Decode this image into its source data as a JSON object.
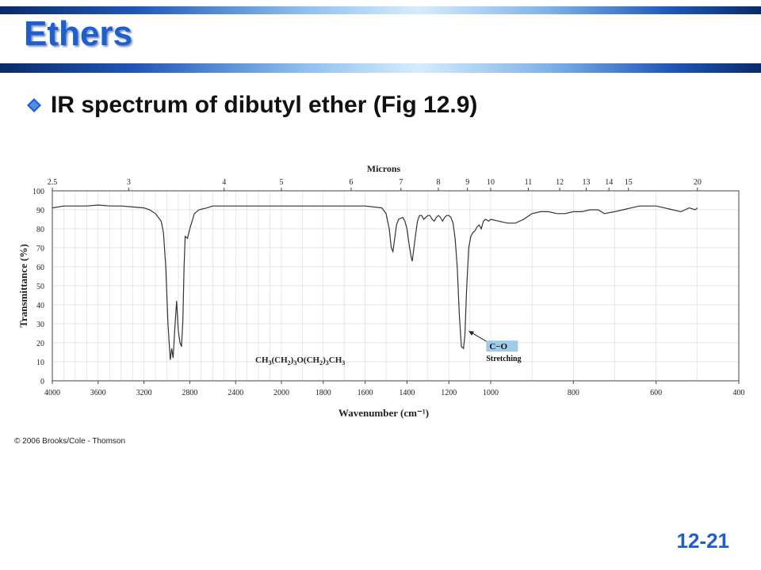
{
  "slide": {
    "title": "Ethers",
    "bullet": "IR spectrum of dibutyl ether (Fig 12.9)",
    "copyright": "© 2006 Brooks/Cole - Thomson",
    "slide_number": "12-21",
    "accent_color": "#1f5fcc",
    "bullet_icon": "diamond-bullet-icon"
  },
  "chart_data": {
    "type": "line",
    "title": "",
    "top_axis_label": "Microns",
    "xlabel": "Wavenumber (cm⁻¹)",
    "ylabel": "Transmittance (%)",
    "ylim": [
      0,
      100
    ],
    "grid": true,
    "y_ticks": [
      0,
      10,
      20,
      30,
      40,
      50,
      60,
      70,
      80,
      90,
      100
    ],
    "x_ticks": [
      4000,
      3600,
      3200,
      2800,
      2400,
      2000,
      1800,
      1600,
      1400,
      1200,
      1000,
      800,
      600,
      400
    ],
    "x_scale_breaks": [
      2000,
      1000
    ],
    "micron_ticks": [
      {
        "label": "2.5",
        "wn": 4000
      },
      {
        "label": "3",
        "wn": 3333
      },
      {
        "label": "4",
        "wn": 2500
      },
      {
        "label": "5",
        "wn": 2000
      },
      {
        "label": "6",
        "wn": 1667
      },
      {
        "label": "7",
        "wn": 1429
      },
      {
        "label": "8",
        "wn": 1250
      },
      {
        "label": "9",
        "wn": 1111
      },
      {
        "label": "10",
        "wn": 1000
      },
      {
        "label": "11",
        "wn": 909
      },
      {
        "label": "12",
        "wn": 833
      },
      {
        "label": "13",
        "wn": 769
      },
      {
        "label": "14",
        "wn": 714
      },
      {
        "label": "15",
        "wn": 667
      },
      {
        "label": "20",
        "wn": 500
      }
    ],
    "molecule_formula": "CH3(CH2)3O(CH2)3CH3",
    "annotation": {
      "label": "C−O",
      "sublabel": "Stretching",
      "wn": 1120,
      "t": 27
    },
    "series": [
      {
        "color": "#333333",
        "points": [
          [
            4000,
            91
          ],
          [
            3900,
            92
          ],
          [
            3800,
            92
          ],
          [
            3700,
            92
          ],
          [
            3600,
            92.5
          ],
          [
            3500,
            92
          ],
          [
            3400,
            92
          ],
          [
            3300,
            91.5
          ],
          [
            3200,
            91
          ],
          [
            3150,
            90
          ],
          [
            3100,
            88
          ],
          [
            3050,
            84
          ],
          [
            3030,
            78
          ],
          [
            3010,
            60
          ],
          [
            2990,
            30
          ],
          [
            2970,
            11
          ],
          [
            2958,
            17
          ],
          [
            2945,
            12
          ],
          [
            2930,
            28
          ],
          [
            2915,
            42
          ],
          [
            2900,
            26
          ],
          [
            2885,
            20
          ],
          [
            2872,
            18
          ],
          [
            2860,
            32
          ],
          [
            2850,
            60
          ],
          [
            2840,
            76
          ],
          [
            2820,
            75
          ],
          [
            2800,
            80
          ],
          [
            2780,
            84
          ],
          [
            2760,
            88
          ],
          [
            2720,
            90
          ],
          [
            2650,
            91
          ],
          [
            2600,
            92
          ],
          [
            2500,
            92
          ],
          [
            2200,
            92
          ],
          [
            2000,
            92
          ],
          [
            1800,
            92
          ],
          [
            1600,
            92
          ],
          [
            1520,
            91
          ],
          [
            1500,
            88
          ],
          [
            1485,
            80
          ],
          [
            1475,
            70
          ],
          [
            1467,
            68
          ],
          [
            1460,
            74
          ],
          [
            1450,
            82
          ],
          [
            1440,
            85
          ],
          [
            1420,
            86
          ],
          [
            1410,
            84
          ],
          [
            1400,
            80
          ],
          [
            1390,
            72
          ],
          [
            1380,
            65
          ],
          [
            1375,
            63
          ],
          [
            1370,
            67
          ],
          [
            1360,
            76
          ],
          [
            1350,
            84
          ],
          [
            1340,
            87
          ],
          [
            1330,
            87
          ],
          [
            1320,
            85
          ],
          [
            1310,
            86
          ],
          [
            1300,
            87
          ],
          [
            1290,
            87
          ],
          [
            1280,
            85
          ],
          [
            1270,
            84
          ],
          [
            1260,
            86
          ],
          [
            1250,
            87
          ],
          [
            1240,
            86
          ],
          [
            1230,
            84
          ],
          [
            1220,
            86
          ],
          [
            1210,
            87
          ],
          [
            1200,
            87
          ],
          [
            1190,
            86
          ],
          [
            1180,
            83
          ],
          [
            1170,
            75
          ],
          [
            1160,
            60
          ],
          [
            1150,
            35
          ],
          [
            1140,
            18
          ],
          [
            1130,
            17
          ],
          [
            1123,
            24
          ],
          [
            1115,
            48
          ],
          [
            1105,
            70
          ],
          [
            1095,
            76
          ],
          [
            1085,
            78
          ],
          [
            1075,
            79
          ],
          [
            1065,
            81
          ],
          [
            1055,
            82
          ],
          [
            1045,
            80
          ],
          [
            1035,
            84
          ],
          [
            1025,
            85
          ],
          [
            1010,
            84
          ],
          [
            1000,
            85
          ],
          [
            980,
            84
          ],
          [
            960,
            83
          ],
          [
            940,
            83
          ],
          [
            920,
            85
          ],
          [
            900,
            88
          ],
          [
            880,
            89
          ],
          [
            860,
            89
          ],
          [
            840,
            88
          ],
          [
            820,
            88
          ],
          [
            800,
            89
          ],
          [
            780,
            89
          ],
          [
            760,
            90
          ],
          [
            740,
            90
          ],
          [
            725,
            88
          ],
          [
            700,
            89
          ],
          [
            680,
            90
          ],
          [
            660,
            91
          ],
          [
            640,
            92
          ],
          [
            620,
            92
          ],
          [
            600,
            92
          ],
          [
            580,
            91
          ],
          [
            560,
            90
          ],
          [
            540,
            89
          ],
          [
            520,
            91
          ],
          [
            505,
            90
          ],
          [
            500,
            91
          ]
        ]
      }
    ]
  }
}
